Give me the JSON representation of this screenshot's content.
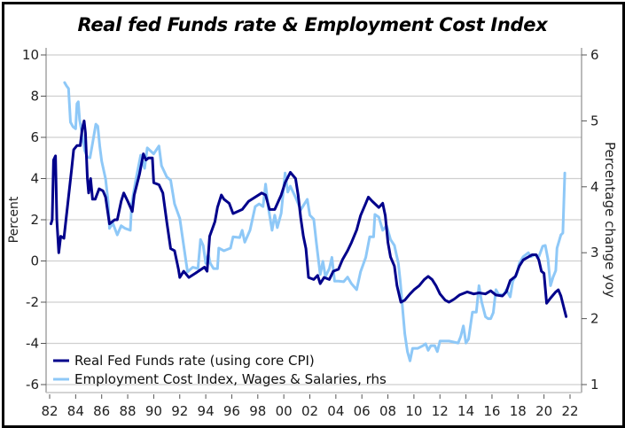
{
  "chart_data": {
    "type": "line",
    "title": "Real fed Funds rate & Employment Cost Index",
    "xlabel": "",
    "ylabel": "Percent",
    "y2label": "Percentage change yoy",
    "xlim": [
      1982,
      2022
    ],
    "ylim": [
      -6,
      10
    ],
    "y2lim": [
      1,
      6
    ],
    "x_ticks": [
      1982,
      1984,
      1986,
      1988,
      1990,
      1992,
      1994,
      1996,
      1998,
      2000,
      2002,
      2004,
      2006,
      2008,
      2010,
      2012,
      2014,
      2016,
      2018,
      2020,
      2022
    ],
    "x_tick_labels": [
      "82",
      "84",
      "86",
      "88",
      "90",
      "92",
      "94",
      "96",
      "98",
      "00",
      "02",
      "04",
      "06",
      "08",
      "10",
      "12",
      "14",
      "16",
      "18",
      "20",
      "22"
    ],
    "y_ticks": [
      -6,
      -4,
      -2,
      0,
      2,
      4,
      6,
      8,
      10
    ],
    "y_tick_labels": [
      "-6",
      "-4",
      "-2",
      "0",
      "2",
      "4",
      "6",
      "8",
      "10"
    ],
    "y2_ticks": [
      1,
      2,
      3,
      4,
      5,
      6
    ],
    "y2_tick_labels": [
      "1",
      "2",
      "3",
      "4",
      "5",
      "6"
    ],
    "grid": true,
    "legend_position": "bottom-left",
    "series": [
      {
        "name": "Real Fed Funds rate (using core CPI)",
        "axis": "left",
        "color": "#00008B",
        "points": [
          [
            1982.1,
            1.8
          ],
          [
            1982.2,
            2.0
          ],
          [
            1982.3,
            4.9
          ],
          [
            1982.45,
            5.1
          ],
          [
            1982.55,
            2.0
          ],
          [
            1982.7,
            0.4
          ],
          [
            1982.85,
            1.2
          ],
          [
            1983.1,
            1.1
          ],
          [
            1983.4,
            2.8
          ],
          [
            1983.7,
            4.5
          ],
          [
            1983.85,
            5.4
          ],
          [
            1984.1,
            5.6
          ],
          [
            1984.35,
            5.6
          ],
          [
            1984.5,
            6.4
          ],
          [
            1984.65,
            6.8
          ],
          [
            1984.75,
            6.2
          ],
          [
            1984.9,
            4.0
          ],
          [
            1985.0,
            3.3
          ],
          [
            1985.15,
            4.0
          ],
          [
            1985.3,
            3.0
          ],
          [
            1985.5,
            3.0
          ],
          [
            1985.8,
            3.5
          ],
          [
            1986.1,
            3.4
          ],
          [
            1986.3,
            3.1
          ],
          [
            1986.6,
            1.8
          ],
          [
            1987.0,
            2.0
          ],
          [
            1987.2,
            2.0
          ],
          [
            1987.5,
            2.9
          ],
          [
            1987.7,
            3.3
          ],
          [
            1988.0,
            2.9
          ],
          [
            1988.35,
            2.4
          ],
          [
            1988.5,
            3.2
          ],
          [
            1988.9,
            4.2
          ],
          [
            1989.2,
            5.2
          ],
          [
            1989.4,
            4.9
          ],
          [
            1989.6,
            5.0
          ],
          [
            1989.9,
            5.0
          ],
          [
            1990.0,
            3.8
          ],
          [
            1990.4,
            3.7
          ],
          [
            1990.7,
            3.3
          ],
          [
            1991.0,
            1.9
          ],
          [
            1991.3,
            0.6
          ],
          [
            1991.6,
            0.5
          ],
          [
            1991.9,
            -0.4
          ],
          [
            1992.0,
            -0.8
          ],
          [
            1992.3,
            -0.5
          ],
          [
            1992.7,
            -0.8
          ],
          [
            1993.2,
            -0.6
          ],
          [
            1993.9,
            -0.3
          ],
          [
            1994.1,
            -0.5
          ],
          [
            1994.3,
            1.2
          ],
          [
            1994.7,
            1.9
          ],
          [
            1994.9,
            2.6
          ],
          [
            1995.2,
            3.2
          ],
          [
            1995.4,
            3.0
          ],
          [
            1995.8,
            2.8
          ],
          [
            1996.1,
            2.3
          ],
          [
            1996.8,
            2.5
          ],
          [
            1997.3,
            2.9
          ],
          [
            1998.3,
            3.3
          ],
          [
            1998.6,
            3.2
          ],
          [
            1998.9,
            2.5
          ],
          [
            1999.3,
            2.5
          ],
          [
            1999.8,
            3.2
          ],
          [
            2000.1,
            3.8
          ],
          [
            2000.5,
            4.3
          ],
          [
            2000.9,
            4.0
          ],
          [
            2001.1,
            3.2
          ],
          [
            2001.3,
            2.1
          ],
          [
            2001.5,
            1.2
          ],
          [
            2001.7,
            0.6
          ],
          [
            2001.9,
            -0.8
          ],
          [
            2002.3,
            -0.9
          ],
          [
            2002.6,
            -0.7
          ],
          [
            2002.8,
            -1.1
          ],
          [
            2003.1,
            -0.8
          ],
          [
            2003.5,
            -0.9
          ],
          [
            2003.8,
            -0.5
          ],
          [
            2004.2,
            -0.4
          ],
          [
            2004.5,
            0.05
          ],
          [
            2004.9,
            0.5
          ],
          [
            2005.2,
            0.9
          ],
          [
            2005.6,
            1.5
          ],
          [
            2005.9,
            2.2
          ],
          [
            2006.3,
            2.8
          ],
          [
            2006.5,
            3.1
          ],
          [
            2006.8,
            2.9
          ],
          [
            2007.3,
            2.6
          ],
          [
            2007.6,
            2.8
          ],
          [
            2007.8,
            2.2
          ],
          [
            2008.0,
            0.9
          ],
          [
            2008.2,
            0.2
          ],
          [
            2008.5,
            -0.25
          ],
          [
            2008.7,
            -1.2
          ],
          [
            2009.0,
            -2.0
          ],
          [
            2009.3,
            -1.9
          ],
          [
            2009.7,
            -1.6
          ],
          [
            2010.0,
            -1.4
          ],
          [
            2010.4,
            -1.2
          ],
          [
            2010.8,
            -0.9
          ],
          [
            2011.1,
            -0.75
          ],
          [
            2011.4,
            -0.9
          ],
          [
            2011.7,
            -1.2
          ],
          [
            2012.0,
            -1.6
          ],
          [
            2012.4,
            -1.9
          ],
          [
            2012.7,
            -2.0
          ],
          [
            2013.1,
            -1.85
          ],
          [
            2013.5,
            -1.65
          ],
          [
            2014.1,
            -1.5
          ],
          [
            2014.6,
            -1.6
          ],
          [
            2015.0,
            -1.55
          ],
          [
            2015.5,
            -1.6
          ],
          [
            2015.9,
            -1.45
          ],
          [
            2016.3,
            -1.65
          ],
          [
            2016.8,
            -1.7
          ],
          [
            2017.1,
            -1.5
          ],
          [
            2017.4,
            -0.95
          ],
          [
            2017.8,
            -0.75
          ],
          [
            2018.1,
            -0.25
          ],
          [
            2018.4,
            0.05
          ],
          [
            2018.8,
            0.2
          ],
          [
            2019.1,
            0.3
          ],
          [
            2019.4,
            0.3
          ],
          [
            2019.6,
            0.05
          ],
          [
            2019.8,
            -0.5
          ],
          [
            2020.0,
            -0.6
          ],
          [
            2020.2,
            -2.05
          ],
          [
            2020.5,
            -1.8
          ],
          [
            2020.9,
            -1.5
          ],
          [
            2021.1,
            -1.4
          ],
          [
            2021.3,
            -1.7
          ],
          [
            2021.7,
            -2.7
          ]
        ]
      },
      {
        "name": "Employment Cost Index, Wages & Salaries, rhs",
        "axis": "right",
        "color": "#8EC8F7",
        "points": [
          [
            1983.15,
            5.58
          ],
          [
            1983.3,
            5.53
          ],
          [
            1983.45,
            5.49
          ],
          [
            1983.6,
            4.98
          ],
          [
            1983.8,
            4.91
          ],
          [
            1984.0,
            4.88
          ],
          [
            1984.1,
            5.26
          ],
          [
            1984.2,
            5.29
          ],
          [
            1984.3,
            5.02
          ],
          [
            1984.5,
            4.79
          ],
          [
            1984.7,
            4.55
          ],
          [
            1984.9,
            4.45
          ],
          [
            1985.1,
            4.44
          ],
          [
            1985.3,
            4.66
          ],
          [
            1985.55,
            4.95
          ],
          [
            1985.7,
            4.92
          ],
          [
            1985.85,
            4.62
          ],
          [
            1986.0,
            4.39
          ],
          [
            1986.3,
            4.12
          ],
          [
            1986.5,
            3.77
          ],
          [
            1986.6,
            3.37
          ],
          [
            1986.85,
            3.45
          ],
          [
            1987.2,
            3.27
          ],
          [
            1987.5,
            3.41
          ],
          [
            1987.8,
            3.37
          ],
          [
            1988.2,
            3.34
          ],
          [
            1988.3,
            3.74
          ],
          [
            1988.6,
            4.08
          ],
          [
            1989.0,
            4.48
          ],
          [
            1989.3,
            4.28
          ],
          [
            1989.5,
            4.59
          ],
          [
            1990.0,
            4.5
          ],
          [
            1990.4,
            4.62
          ],
          [
            1990.6,
            4.32
          ],
          [
            1991.0,
            4.15
          ],
          [
            1991.3,
            4.1
          ],
          [
            1991.6,
            3.74
          ],
          [
            1992.0,
            3.52
          ],
          [
            1992.3,
            3.11
          ],
          [
            1992.5,
            2.84
          ],
          [
            1992.6,
            2.71
          ],
          [
            1993.0,
            2.78
          ],
          [
            1993.4,
            2.76
          ],
          [
            1993.6,
            3.2
          ],
          [
            1993.8,
            3.11
          ],
          [
            1994.0,
            2.84
          ],
          [
            1994.2,
            2.98
          ],
          [
            1994.35,
            2.84
          ],
          [
            1994.6,
            2.76
          ],
          [
            1994.9,
            2.76
          ],
          [
            1995.0,
            3.07
          ],
          [
            1995.4,
            3.03
          ],
          [
            1995.9,
            3.07
          ],
          [
            1996.1,
            3.24
          ],
          [
            1996.6,
            3.23
          ],
          [
            1996.8,
            3.34
          ],
          [
            1997.0,
            3.16
          ],
          [
            1997.4,
            3.34
          ],
          [
            1997.8,
            3.7
          ],
          [
            1998.1,
            3.74
          ],
          [
            1998.4,
            3.7
          ],
          [
            1998.6,
            4.04
          ],
          [
            1998.8,
            3.7
          ],
          [
            1999.1,
            3.34
          ],
          [
            1999.3,
            3.57
          ],
          [
            1999.5,
            3.38
          ],
          [
            1999.8,
            3.6
          ],
          [
            2000.1,
            4.21
          ],
          [
            2000.3,
            3.92
          ],
          [
            2000.5,
            4.01
          ],
          [
            2000.9,
            3.84
          ],
          [
            2001.3,
            3.65
          ],
          [
            2001.8,
            3.81
          ],
          [
            2002.0,
            3.57
          ],
          [
            2002.3,
            3.51
          ],
          [
            2002.5,
            3.16
          ],
          [
            2002.8,
            2.67
          ],
          [
            2003.0,
            2.87
          ],
          [
            2003.2,
            2.64
          ],
          [
            2003.5,
            2.76
          ],
          [
            2003.7,
            2.93
          ],
          [
            2003.9,
            2.57
          ],
          [
            2004.2,
            2.57
          ],
          [
            2004.6,
            2.56
          ],
          [
            2004.9,
            2.63
          ],
          [
            2005.2,
            2.53
          ],
          [
            2005.6,
            2.44
          ],
          [
            2005.9,
            2.71
          ],
          [
            2006.3,
            2.93
          ],
          [
            2006.6,
            3.24
          ],
          [
            2006.9,
            3.24
          ],
          [
            2007.0,
            3.58
          ],
          [
            2007.3,
            3.54
          ],
          [
            2007.6,
            3.34
          ],
          [
            2007.9,
            3.41
          ],
          [
            2008.2,
            3.2
          ],
          [
            2008.5,
            3.11
          ],
          [
            2008.8,
            2.84
          ],
          [
            2008.95,
            2.57
          ],
          [
            2009.1,
            2.22
          ],
          [
            2009.3,
            1.77
          ],
          [
            2009.5,
            1.5
          ],
          [
            2009.7,
            1.36
          ],
          [
            2009.9,
            1.55
          ],
          [
            2010.3,
            1.55
          ],
          [
            2010.7,
            1.59
          ],
          [
            2010.9,
            1.62
          ],
          [
            2011.1,
            1.52
          ],
          [
            2011.3,
            1.59
          ],
          [
            2011.6,
            1.59
          ],
          [
            2011.8,
            1.5
          ],
          [
            2012.0,
            1.66
          ],
          [
            2012.7,
            1.66
          ],
          [
            2013.4,
            1.63
          ],
          [
            2013.6,
            1.73
          ],
          [
            2013.8,
            1.89
          ],
          [
            2014.0,
            1.63
          ],
          [
            2014.2,
            1.69
          ],
          [
            2014.5,
            2.1
          ],
          [
            2014.8,
            2.1
          ],
          [
            2015.0,
            2.5
          ],
          [
            2015.2,
            2.26
          ],
          [
            2015.5,
            2.03
          ],
          [
            2015.7,
            2.0
          ],
          [
            2015.9,
            2.0
          ],
          [
            2016.1,
            2.09
          ],
          [
            2016.3,
            2.44
          ],
          [
            2016.5,
            2.37
          ],
          [
            2016.9,
            2.36
          ],
          [
            2017.1,
            2.44
          ],
          [
            2017.4,
            2.33
          ],
          [
            2017.6,
            2.57
          ],
          [
            2017.9,
            2.67
          ],
          [
            2018.1,
            2.84
          ],
          [
            2018.4,
            2.94
          ],
          [
            2018.8,
            3.0
          ],
          [
            2019.0,
            2.94
          ],
          [
            2019.3,
            2.97
          ],
          [
            2019.6,
            2.94
          ],
          [
            2019.9,
            3.1
          ],
          [
            2020.1,
            3.11
          ],
          [
            2020.3,
            2.9
          ],
          [
            2020.5,
            2.5
          ],
          [
            2020.7,
            2.63
          ],
          [
            2020.9,
            2.73
          ],
          [
            2021.0,
            3.07
          ],
          [
            2021.3,
            3.27
          ],
          [
            2021.45,
            3.3
          ],
          [
            2021.6,
            4.21
          ]
        ]
      }
    ]
  }
}
